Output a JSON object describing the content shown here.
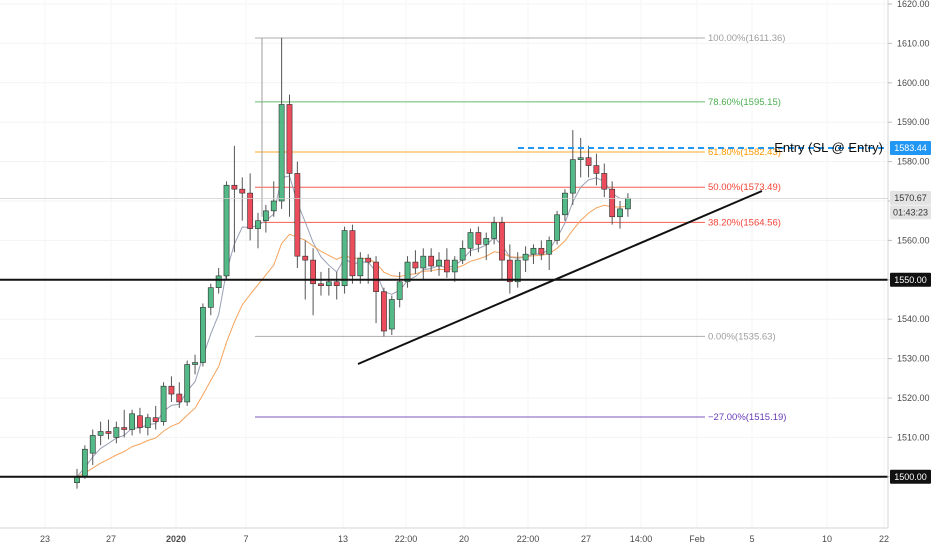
{
  "chart_data": {
    "type": "candlestick",
    "instrument_note": "",
    "y_axis": {
      "ylim": [
        1497,
        1622
      ],
      "ticks": [
        "1620.00",
        "1610.00",
        "1600.00",
        "1590.00",
        "1580.00",
        "1570.00",
        "1560.00",
        "1550.00",
        "1540.00",
        "1530.00",
        "1520.00",
        "1510.00",
        "1500.00"
      ]
    },
    "x_axis": {
      "ticks": [
        "23",
        "27",
        "2020",
        "7",
        "13",
        "22:00",
        "20",
        "22:00",
        "27",
        "14:00",
        "Feb",
        "5",
        "10",
        "22"
      ]
    },
    "candles": [
      {
        "o": 1498.5,
        "h": 1502.0,
        "l": 1497.0,
        "c": 1500.0
      },
      {
        "o": 1500.0,
        "h": 1508.0,
        "l": 1499.5,
        "c": 1507.0
      },
      {
        "o": 1506.0,
        "h": 1512.0,
        "l": 1503.0,
        "c": 1510.5
      },
      {
        "o": 1510.5,
        "h": 1514.0,
        "l": 1508.0,
        "c": 1511.5
      },
      {
        "o": 1511.5,
        "h": 1514.5,
        "l": 1509.5,
        "c": 1511.0
      },
      {
        "o": 1510.0,
        "h": 1514.0,
        "l": 1508.5,
        "c": 1512.5
      },
      {
        "o": 1512.5,
        "h": 1517.0,
        "l": 1510.0,
        "c": 1512.0
      },
      {
        "o": 1512.0,
        "h": 1517.0,
        "l": 1510.5,
        "c": 1516.0
      },
      {
        "o": 1515.5,
        "h": 1517.5,
        "l": 1511.0,
        "c": 1512.5
      },
      {
        "o": 1512.5,
        "h": 1516.0,
        "l": 1510.5,
        "c": 1515.0
      },
      {
        "o": 1515.0,
        "h": 1518.0,
        "l": 1512.0,
        "c": 1514.0
      },
      {
        "o": 1514.0,
        "h": 1524.0,
        "l": 1513.0,
        "c": 1523.0
      },
      {
        "o": 1523.0,
        "h": 1525.5,
        "l": 1519.0,
        "c": 1521.0
      },
      {
        "o": 1521.0,
        "h": 1524.0,
        "l": 1517.5,
        "c": 1519.0
      },
      {
        "o": 1519.0,
        "h": 1529.5,
        "l": 1518.0,
        "c": 1528.5
      },
      {
        "o": 1528.5,
        "h": 1531.0,
        "l": 1526.0,
        "c": 1529.0
      },
      {
        "o": 1529.0,
        "h": 1544.0,
        "l": 1528.0,
        "c": 1543.0
      },
      {
        "o": 1543.0,
        "h": 1549.0,
        "l": 1541.0,
        "c": 1548.0
      },
      {
        "o": 1548.0,
        "h": 1553.0,
        "l": 1546.5,
        "c": 1551.0
      },
      {
        "o": 1551.0,
        "h": 1575.0,
        "l": 1550.0,
        "c": 1574.0
      },
      {
        "o": 1574.0,
        "h": 1584.0,
        "l": 1557.0,
        "c": 1573.0
      },
      {
        "o": 1573.0,
        "h": 1576.0,
        "l": 1565.0,
        "c": 1572.0
      },
      {
        "o": 1572.0,
        "h": 1577.0,
        "l": 1560.0,
        "c": 1563.0
      },
      {
        "o": 1563.0,
        "h": 1567.0,
        "l": 1558.0,
        "c": 1565.0
      },
      {
        "o": 1565.0,
        "h": 1569.0,
        "l": 1562.0,
        "c": 1567.5
      },
      {
        "o": 1567.5,
        "h": 1575.0,
        "l": 1566.0,
        "c": 1570.0
      },
      {
        "o": 1570.0,
        "h": 1611.4,
        "l": 1568.0,
        "c": 1594.5
      },
      {
        "o": 1594.5,
        "h": 1597.0,
        "l": 1566.0,
        "c": 1577.0
      },
      {
        "o": 1577.0,
        "h": 1580.0,
        "l": 1553.0,
        "c": 1556.0
      },
      {
        "o": 1556.0,
        "h": 1560.0,
        "l": 1545.0,
        "c": 1555.0
      },
      {
        "o": 1555.0,
        "h": 1558.0,
        "l": 1541.0,
        "c": 1549.0
      },
      {
        "o": 1549.0,
        "h": 1552.0,
        "l": 1546.0,
        "c": 1548.5
      },
      {
        "o": 1548.5,
        "h": 1553.0,
        "l": 1546.0,
        "c": 1549.5
      },
      {
        "o": 1549.5,
        "h": 1552.0,
        "l": 1545.0,
        "c": 1548.5
      },
      {
        "o": 1548.5,
        "h": 1563.5,
        "l": 1546.5,
        "c": 1562.5
      },
      {
        "o": 1562.5,
        "h": 1564.0,
        "l": 1549.0,
        "c": 1551.0
      },
      {
        "o": 1551.0,
        "h": 1557.0,
        "l": 1549.0,
        "c": 1555.5
      },
      {
        "o": 1555.5,
        "h": 1556.5,
        "l": 1549.0,
        "c": 1554.5
      },
      {
        "o": 1554.5,
        "h": 1556.0,
        "l": 1539.0,
        "c": 1547.0
      },
      {
        "o": 1547.0,
        "h": 1548.0,
        "l": 1535.6,
        "c": 1537.0
      },
      {
        "o": 1537.5,
        "h": 1546.0,
        "l": 1536.0,
        "c": 1545.0
      },
      {
        "o": 1545.0,
        "h": 1552.0,
        "l": 1543.0,
        "c": 1549.5
      },
      {
        "o": 1549.5,
        "h": 1556.0,
        "l": 1548.0,
        "c": 1554.5
      },
      {
        "o": 1554.5,
        "h": 1557.5,
        "l": 1551.5,
        "c": 1553.0
      },
      {
        "o": 1553.0,
        "h": 1558.0,
        "l": 1550.0,
        "c": 1556.0
      },
      {
        "o": 1556.0,
        "h": 1558.0,
        "l": 1552.0,
        "c": 1553.5
      },
      {
        "o": 1553.5,
        "h": 1557.0,
        "l": 1551.0,
        "c": 1555.0
      },
      {
        "o": 1555.0,
        "h": 1558.0,
        "l": 1550.5,
        "c": 1552.0
      },
      {
        "o": 1552.0,
        "h": 1556.0,
        "l": 1549.5,
        "c": 1555.0
      },
      {
        "o": 1555.0,
        "h": 1560.0,
        "l": 1554.0,
        "c": 1558.0
      },
      {
        "o": 1558.0,
        "h": 1563.0,
        "l": 1556.0,
        "c": 1562.0
      },
      {
        "o": 1562.0,
        "h": 1563.5,
        "l": 1557.0,
        "c": 1559.0
      },
      {
        "o": 1559.0,
        "h": 1562.0,
        "l": 1555.0,
        "c": 1560.5
      },
      {
        "o": 1560.5,
        "h": 1566.0,
        "l": 1559.0,
        "c": 1564.5
      },
      {
        "o": 1564.5,
        "h": 1566.0,
        "l": 1550.0,
        "c": 1555.0
      },
      {
        "o": 1555.0,
        "h": 1559.0,
        "l": 1546.5,
        "c": 1549.5
      },
      {
        "o": 1549.5,
        "h": 1557.0,
        "l": 1548.0,
        "c": 1555.0
      },
      {
        "o": 1555.0,
        "h": 1558.5,
        "l": 1552.0,
        "c": 1556.5
      },
      {
        "o": 1556.5,
        "h": 1559.0,
        "l": 1554.0,
        "c": 1558.0
      },
      {
        "o": 1558.0,
        "h": 1560.0,
        "l": 1555.0,
        "c": 1556.5
      },
      {
        "o": 1556.5,
        "h": 1561.0,
        "l": 1552.5,
        "c": 1560.0
      },
      {
        "o": 1560.0,
        "h": 1567.5,
        "l": 1559.0,
        "c": 1566.5
      },
      {
        "o": 1566.5,
        "h": 1573.0,
        "l": 1565.0,
        "c": 1572.0
      },
      {
        "o": 1572.0,
        "h": 1588.0,
        "l": 1569.0,
        "c": 1580.5
      },
      {
        "o": 1580.5,
        "h": 1586.0,
        "l": 1576.0,
        "c": 1581.0
      },
      {
        "o": 1581.0,
        "h": 1584.0,
        "l": 1576.0,
        "c": 1579.0
      },
      {
        "o": 1579.0,
        "h": 1582.0,
        "l": 1574.0,
        "c": 1577.0
      },
      {
        "o": 1577.0,
        "h": 1579.5,
        "l": 1571.0,
        "c": 1573.0
      },
      {
        "o": 1573.0,
        "h": 1575.0,
        "l": 1564.0,
        "c": 1566.0
      },
      {
        "o": 1566.0,
        "h": 1570.0,
        "l": 1563.0,
        "c": 1568.0
      },
      {
        "o": 1568.0,
        "h": 1572.0,
        "l": 1566.0,
        "c": 1570.7
      }
    ],
    "fib_levels": [
      {
        "label": "100.00%(1611.36)",
        "price": 1611.36,
        "color": "#9e9e9e"
      },
      {
        "label": "78.60%(1595.15)",
        "price": 1595.15,
        "color": "#4caf50"
      },
      {
        "label": "61.80%(1582.43)",
        "price": 1582.43,
        "color": "#ff9800"
      },
      {
        "label": "50.00%(1573.49)",
        "price": 1573.49,
        "color": "#f44336"
      },
      {
        "label": "38.20%(1564.56)",
        "price": 1564.56,
        "color": "#f44336"
      },
      {
        "label": "0.00%(1535.63)",
        "price": 1535.63,
        "color": "#9e9e9e"
      },
      {
        "label": "−27.00%(1515.19)",
        "price": 1515.19,
        "color": "#673ab7"
      }
    ],
    "horizontal_levels": [
      1550.0,
      1500.0
    ],
    "entry_level": 1583.44,
    "annotation": "Entry (SL @ Entry)",
    "price_tags": [
      {
        "label": "1583.44",
        "style": "blue"
      },
      {
        "label": "1570.67",
        "style": "gray"
      },
      {
        "label": "01:43:23",
        "style": "gray"
      },
      {
        "label": "1550.00",
        "style": "black"
      },
      {
        "label": "1500.00",
        "style": "black"
      }
    ],
    "colors": {
      "up": "#53b987",
      "down": "#eb4d5c",
      "wick": "#555555",
      "entry": "#2196f3",
      "ma_fast": "#9aa0b4",
      "ma_slow": "#f5a35c"
    }
  }
}
